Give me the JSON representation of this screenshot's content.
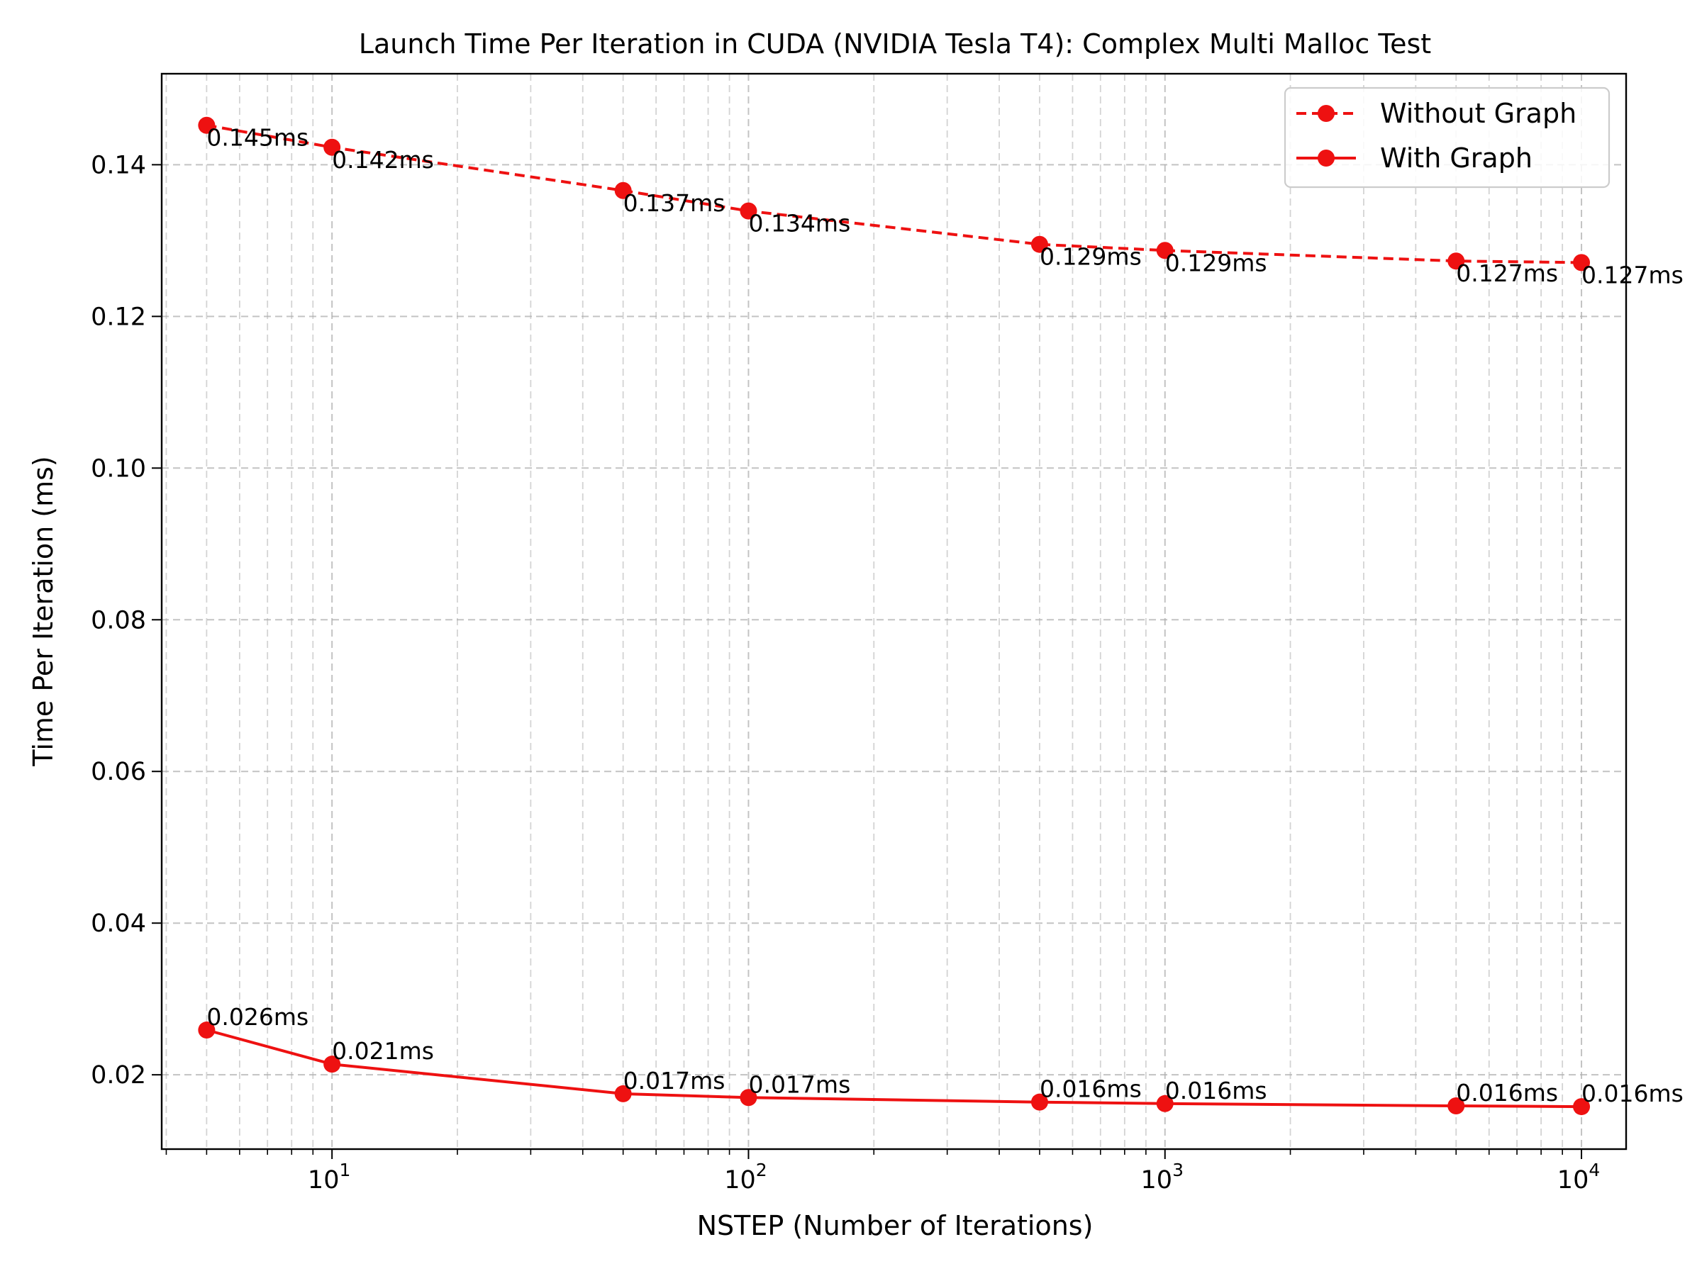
{
  "chart_data": {
    "type": "line",
    "title": "Launch Time Per Iteration in CUDA (NVIDIA Tesla T4): Complex Multi Malloc Test",
    "xlabel": "NSTEP (Number of Iterations)",
    "ylabel": "Time Per Iteration (ms)",
    "x_scale": "log",
    "xlim": [
      3.9,
      12800
    ],
    "ylim": [
      0.0102,
      0.152
    ],
    "grid": true,
    "legend_position": "top-right",
    "x": [
      5,
      10,
      50,
      100,
      500,
      1000,
      5000,
      10000
    ],
    "x_ticks": [
      {
        "value": 10,
        "base": "10",
        "exp": "1"
      },
      {
        "value": 100,
        "base": "10",
        "exp": "2"
      },
      {
        "value": 1000,
        "base": "10",
        "exp": "3"
      },
      {
        "value": 10000,
        "base": "10",
        "exp": "4"
      }
    ],
    "y_ticks": [
      {
        "value": 0.02,
        "label": "0.02"
      },
      {
        "value": 0.04,
        "label": "0.04"
      },
      {
        "value": 0.06,
        "label": "0.06"
      },
      {
        "value": 0.08,
        "label": "0.08"
      },
      {
        "value": 0.1,
        "label": "0.10"
      },
      {
        "value": 0.12,
        "label": "0.12"
      },
      {
        "value": 0.14,
        "label": "0.14"
      }
    ],
    "series": [
      {
        "name": "Without Graph",
        "color": "#ee1111",
        "line_style": "dashed",
        "label_position": "below",
        "values": [
          0.1452,
          0.1423,
          0.1366,
          0.1339,
          0.1295,
          0.1287,
          0.1273,
          0.1271
        ],
        "labels": [
          "0.145ms",
          "0.142ms",
          "0.137ms",
          "0.134ms",
          "0.129ms",
          "0.129ms",
          "0.127ms",
          "0.127ms"
        ]
      },
      {
        "name": "With Graph",
        "color": "#ee1111",
        "line_style": "solid",
        "label_position": "above",
        "values": [
          0.0259,
          0.0214,
          0.0175,
          0.017,
          0.0164,
          0.0162,
          0.0159,
          0.0158
        ],
        "labels": [
          "0.026ms",
          "0.021ms",
          "0.017ms",
          "0.017ms",
          "0.016ms",
          "0.016ms",
          "0.016ms",
          "0.016ms"
        ]
      }
    ]
  }
}
